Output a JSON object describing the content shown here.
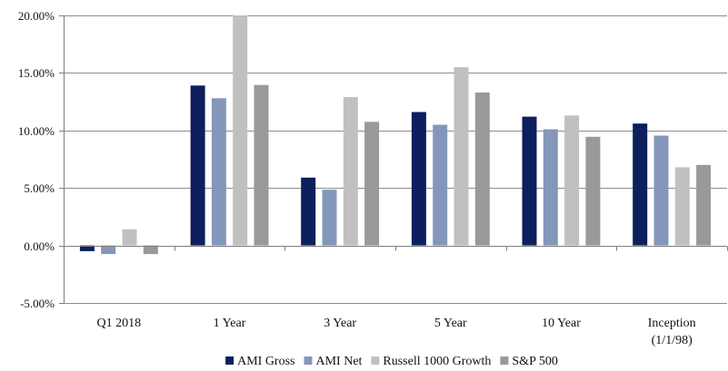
{
  "chart_data": {
    "type": "bar",
    "title": "",
    "xlabel": "",
    "ylabel": "",
    "ylim": [
      -5,
      20
    ],
    "ytick_values": [
      -5,
      0,
      5,
      10,
      15,
      20
    ],
    "ytick_labels": [
      "-5.00%",
      "0.00%",
      "5.00%",
      "10.00%",
      "15.00%",
      "20.00%"
    ],
    "grid": "horizontal",
    "legend_position": "bottom",
    "categories": [
      "Q1 2018",
      "1 Year",
      "3 Year",
      "5 Year",
      "10 Year",
      "Inception (1/1/98)"
    ],
    "category_label_lines": [
      [
        "Q1 2018"
      ],
      [
        "1 Year"
      ],
      [
        "3 Year"
      ],
      [
        "5 Year"
      ],
      [
        "10 Year"
      ],
      [
        "Inception",
        "(1/1/98)"
      ]
    ],
    "series": [
      {
        "name": "AMI Gross",
        "color": "#0d1f5c",
        "values": [
          -0.5,
          13.9,
          5.9,
          11.6,
          11.2,
          10.6
        ]
      },
      {
        "name": "AMI Net",
        "color": "#8497bb",
        "values": [
          -0.75,
          12.8,
          4.85,
          10.5,
          10.1,
          9.55
        ]
      },
      {
        "name": "Russell 1000 Growth",
        "color": "#c0c0c0",
        "values": [
          1.4,
          20.1,
          12.9,
          15.5,
          11.3,
          6.8
        ]
      },
      {
        "name": "S&P 500",
        "color": "#999999",
        "values": [
          -0.75,
          13.95,
          10.75,
          13.3,
          9.45,
          7.0
        ]
      }
    ]
  }
}
